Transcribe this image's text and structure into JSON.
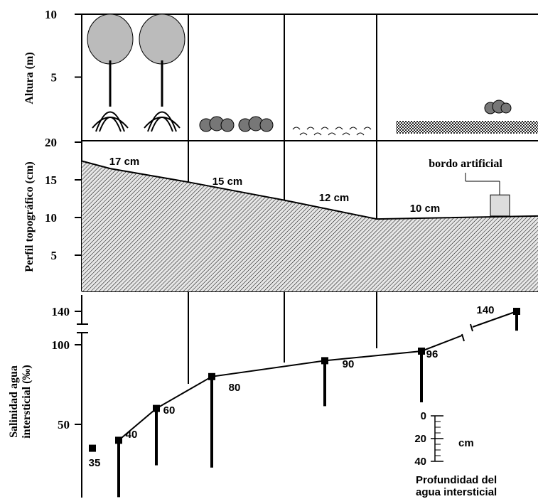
{
  "top": {
    "axis_label": "Altura (m)",
    "ylim": [
      0,
      10
    ],
    "yticks": [
      10,
      5
    ]
  },
  "profile": {
    "axis_label": "Perfil topográfico (cm)",
    "ylim": [
      0,
      20
    ],
    "yticks": [
      20,
      15,
      10,
      5
    ],
    "elevation": [
      17.5,
      16.5,
      14.7,
      12.3,
      9.8,
      10.2
    ],
    "labels": [
      "17 cm",
      "15 cm",
      "12 cm",
      "10 cm"
    ],
    "levee_label": "bordo artificial",
    "levee_height": 13
  },
  "salinity": {
    "axis_label": [
      "Salinidad agua",
      "intersticial (‰)"
    ],
    "yticks": [
      140,
      100,
      50
    ],
    "values": [
      35,
      40,
      60,
      80,
      90,
      96,
      140
    ],
    "depth": [
      0,
      50,
      50,
      80,
      40,
      45,
      17
    ]
  },
  "depth_scale": {
    "ticks": [
      0,
      20,
      40
    ],
    "unit": "cm",
    "title": [
      "Profundidad del",
      "agua intersticial"
    ]
  }
}
